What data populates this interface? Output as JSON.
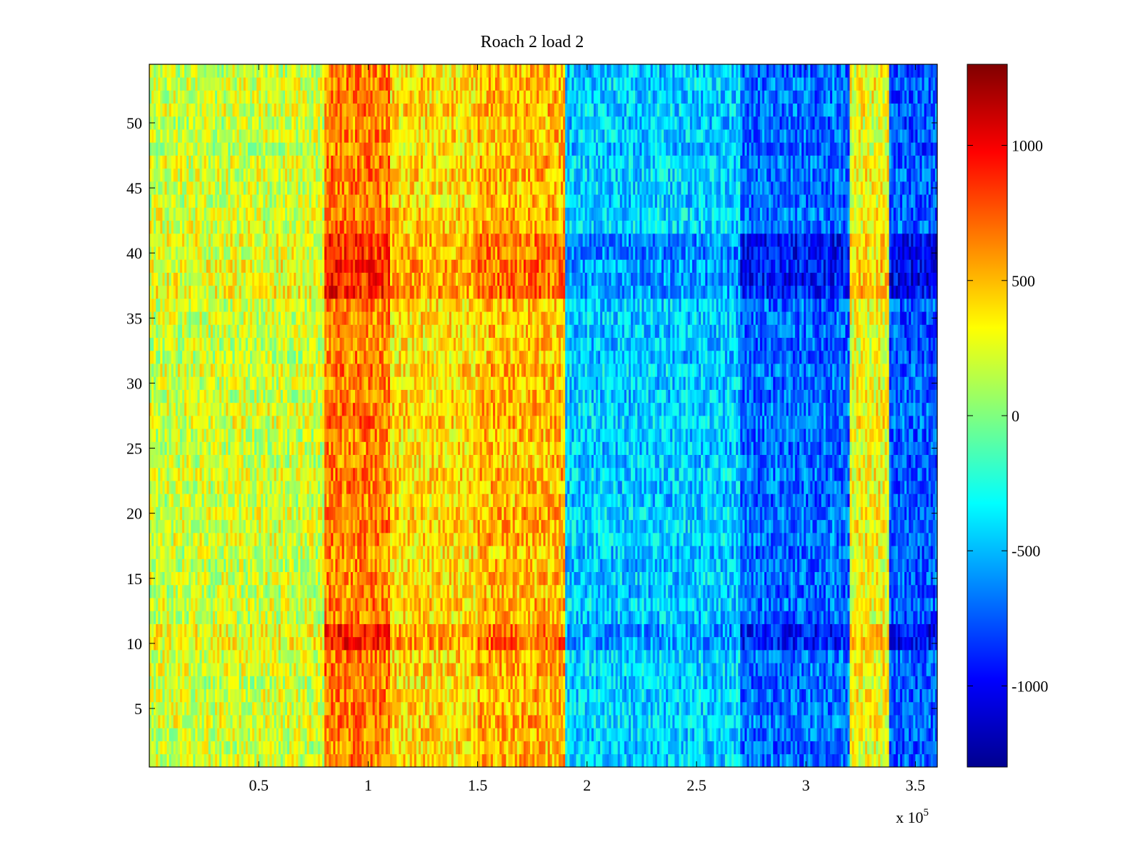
{
  "chart_data": {
    "type": "heatmap",
    "title": "Roach 2 load 2",
    "xlabel": "",
    "ylabel": "",
    "x_multiplier_label": "x 10",
    "x_multiplier_exponent": "5",
    "xlim": [
      0,
      360000
    ],
    "ylim": [
      0.5,
      54.5
    ],
    "row_count": 54,
    "x_ticks": [
      50000,
      100000,
      150000,
      200000,
      250000,
      300000,
      350000
    ],
    "x_tick_labels": [
      "0.5",
      "1",
      "1.5",
      "2",
      "2.5",
      "3",
      "3.5"
    ],
    "y_ticks": [
      5,
      10,
      15,
      20,
      25,
      30,
      35,
      40,
      45,
      50
    ],
    "y_tick_labels": [
      "5",
      "10",
      "15",
      "20",
      "25",
      "30",
      "35",
      "40",
      "45",
      "50"
    ],
    "colormap": "jet",
    "colorbar": {
      "clim": [
        -1300,
        1300
      ],
      "ticks": [
        -1000,
        -500,
        0,
        500,
        1000
      ],
      "tick_labels": [
        "-1000",
        "-500",
        "0",
        "500",
        "1000"
      ]
    },
    "column_bands": [
      {
        "x_start": 0,
        "x_end": 80000,
        "approx_value": 200
      },
      {
        "x_start": 80000,
        "x_end": 110000,
        "approx_value": 650
      },
      {
        "x_start": 110000,
        "x_end": 150000,
        "approx_value": 400
      },
      {
        "x_start": 150000,
        "x_end": 190000,
        "approx_value": 500
      },
      {
        "x_start": 190000,
        "x_end": 270000,
        "approx_value": -450
      },
      {
        "x_start": 270000,
        "x_end": 320000,
        "approx_value": -700
      },
      {
        "x_start": 320000,
        "x_end": 338000,
        "approx_value": 300
      },
      {
        "x_start": 338000,
        "x_end": 360000,
        "approx_value": -750
      }
    ],
    "row_bands": [
      {
        "y_start": 36.5,
        "y_end": 41.5,
        "offset": "stronger"
      },
      {
        "y_start": 9.5,
        "y_end": 11.5,
        "offset": "stronger"
      }
    ]
  }
}
